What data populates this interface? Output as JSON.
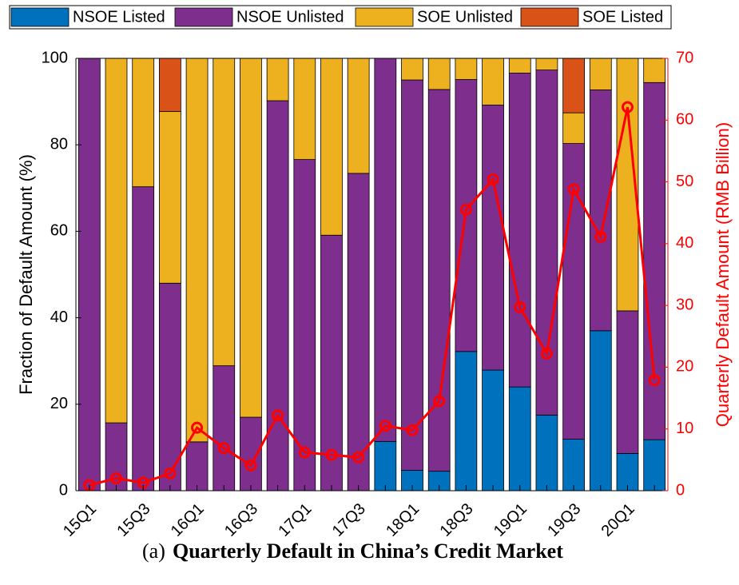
{
  "chart_data": {
    "type": "bar",
    "stacked": true,
    "caption_label": "(a)",
    "caption": "Quarterly Default in China’s Credit Market",
    "ylabel": "Fraction of Default Amount (%)",
    "y2label": "Quarterly Default Amount (RMB Billion)",
    "categories": [
      "15Q1",
      null,
      "15Q3",
      null,
      "16Q1",
      null,
      "16Q3",
      null,
      "17Q1",
      null,
      "17Q3",
      null,
      "18Q1",
      null,
      "18Q3",
      null,
      "19Q1",
      null,
      "19Q3",
      null,
      "20Q1",
      null
    ],
    "series": [
      {
        "name": "NSOE Listed",
        "color": "#0072BD",
        "values": [
          0,
          0,
          0,
          0,
          0,
          0,
          0,
          0,
          0,
          0,
          0,
          11.4,
          4.7,
          4.5,
          32.2,
          27.9,
          24,
          17.5,
          11.9,
          37,
          8.6,
          11.8
        ]
      },
      {
        "name": "NSOE Unlisted",
        "color": "#7E2F8E",
        "values": [
          100,
          15.7,
          70.3,
          48,
          11.3,
          28.9,
          17,
          90.2,
          76.6,
          59.1,
          73.4,
          88.6,
          90.3,
          88.3,
          62.9,
          61.3,
          72.6,
          79.8,
          68.4,
          55.7,
          33,
          82.6
        ]
      },
      {
        "name": "SOE Unlisted",
        "color": "#EDB120",
        "values": [
          0,
          84.3,
          29.7,
          39.7,
          88.7,
          71.1,
          83,
          9.8,
          23.4,
          40.9,
          26.6,
          0,
          5,
          7.2,
          4.9,
          10.8,
          3.4,
          2.7,
          7.1,
          7.3,
          58.4,
          5.6
        ]
      },
      {
        "name": "SOE Listed",
        "color": "#D95319",
        "values": [
          0,
          0,
          0,
          12.3,
          0,
          0,
          0,
          0,
          0,
          0,
          0,
          0,
          0,
          0,
          0,
          0,
          0,
          0,
          12.6,
          0,
          0,
          0
        ]
      },
      {
        "type": "line",
        "axis": "y2",
        "color": "#FF0000",
        "values": [
          0.9,
          2,
          1.3,
          2.8,
          10.2,
          6.9,
          4.1,
          12.2,
          6.2,
          5.8,
          5.4,
          10.5,
          9.8,
          14.5,
          45.5,
          50.4,
          29.7,
          22.2,
          48.8,
          41.1,
          62.1,
          17.9
        ]
      }
    ],
    "ylim": [
      0,
      100
    ],
    "yticks": [
      0,
      20,
      40,
      60,
      80,
      100
    ],
    "y2lim": [
      0,
      70
    ],
    "y2ticks": [
      0,
      10,
      20,
      30,
      40,
      50,
      60,
      70
    ],
    "y2color": "#FF0000",
    "legend": "top"
  }
}
